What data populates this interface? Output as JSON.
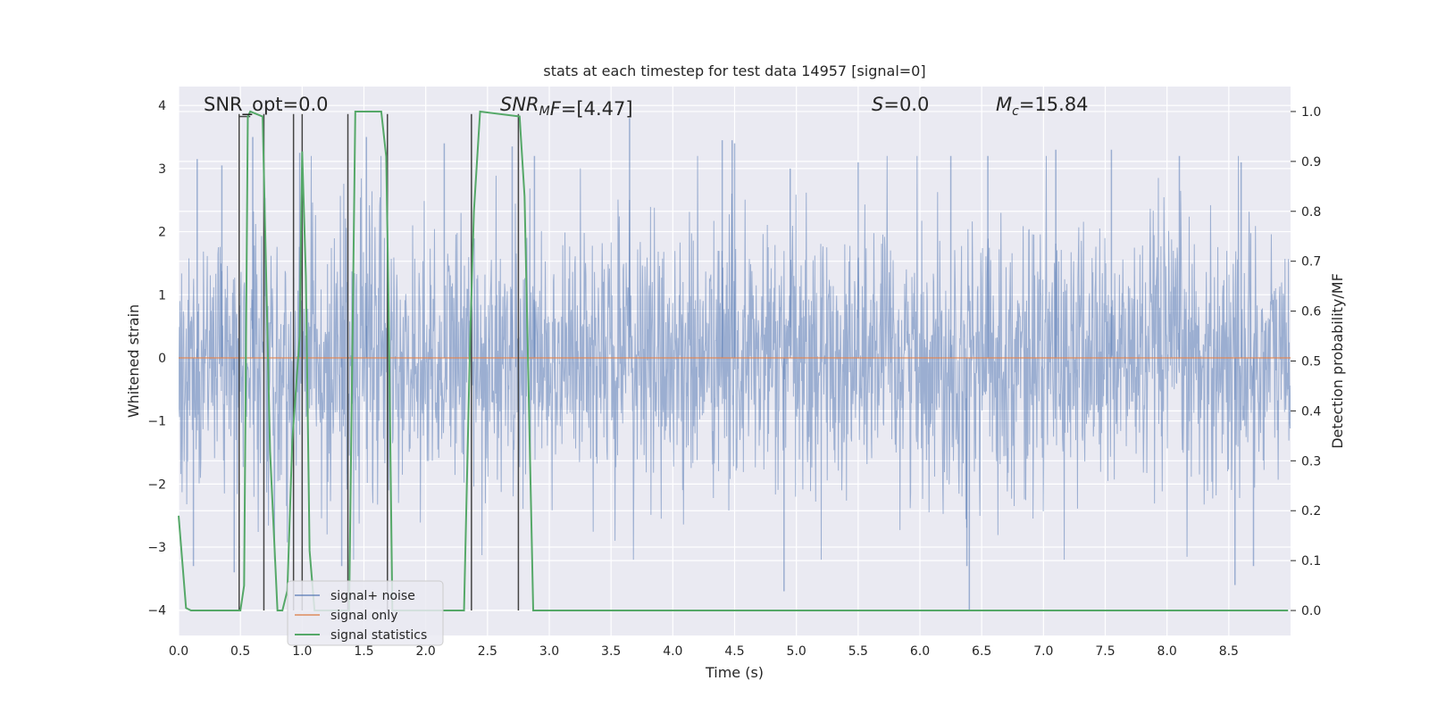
{
  "chart_data": {
    "type": "line",
    "title": "stats at each timestep for test data 14957 [signal=0]",
    "xlabel": "Time (s)",
    "ylabel_left": "Whitened strain",
    "ylabel_right": "Detection probability/MF",
    "xlim": [
      0.0,
      9.0
    ],
    "ylim_left": [
      -4.4,
      4.3
    ],
    "ylim_right": [
      -0.05,
      1.05
    ],
    "xticks": [
      "0.0",
      "0.5",
      "1.0",
      "1.5",
      "2.0",
      "2.5",
      "3.0",
      "3.5",
      "4.0",
      "4.5",
      "5.0",
      "5.5",
      "6.0",
      "6.5",
      "7.0",
      "7.5",
      "8.0",
      "8.5"
    ],
    "yticks_left": [
      "4",
      "3",
      "2",
      "1",
      "0",
      "−1",
      "−2",
      "−3",
      "−4"
    ],
    "yticks_right": [
      "1.0",
      "0.9",
      "0.8",
      "0.7",
      "0.6",
      "0.5",
      "0.4",
      "0.3",
      "0.2",
      "0.1",
      "0.0"
    ],
    "grid": true,
    "legend_location": "lower-left",
    "annotations": {
      "snr_opt": "SNR_opt=0.0",
      "snr_mf_label": "SNR",
      "snr_mf_sub": "M",
      "snr_mf_rest": "F=[4.47]",
      "s_label": "S",
      "s_rest": "=0.0",
      "mc_label": "M",
      "mc_sub": "c",
      "mc_rest": "=15.84"
    },
    "series": [
      {
        "name": "signal+ noise",
        "color": "#4c72b0",
        "axis": "left",
        "description_range": [
          -4.0,
          3.9
        ],
        "spikes": [
          [
            0.15,
            3.15
          ],
          [
            0.35,
            3.05
          ],
          [
            0.6,
            3.5
          ],
          [
            0.98,
            3.25
          ],
          [
            1.52,
            3.5
          ],
          [
            2.15,
            3.4
          ],
          [
            2.7,
            3.35
          ],
          [
            2.88,
            3.2
          ],
          [
            3.65,
            3.8
          ],
          [
            4.4,
            3.45
          ],
          [
            4.48,
            3.45
          ],
          [
            4.5,
            3.4
          ],
          [
            4.95,
            3.0
          ],
          [
            5.5,
            3.1
          ],
          [
            6.25,
            3.2
          ],
          [
            6.55,
            3.2
          ],
          [
            7.1,
            3.3
          ],
          [
            7.55,
            3.3
          ],
          [
            8.1,
            3.2
          ],
          [
            8.6,
            3.1
          ],
          [
            0.12,
            -3.3
          ],
          [
            0.45,
            -3.4
          ],
          [
            1.32,
            -3.3
          ],
          [
            4.9,
            -3.7
          ],
          [
            6.4,
            -4.0
          ],
          [
            6.38,
            -3.3
          ],
          [
            8.55,
            -3.6
          ],
          [
            8.7,
            -3.3
          ]
        ]
      },
      {
        "name": "signal only",
        "color": "#dd8452",
        "axis": "left",
        "value": 0.0
      },
      {
        "name": "signal statistics",
        "color": "#55a868",
        "axis": "right",
        "x": [
          0.0,
          0.06,
          0.1,
          0.5,
          0.53,
          0.56,
          0.58,
          0.68,
          0.74,
          0.8,
          0.84,
          0.88,
          0.92,
          0.98,
          1.0,
          1.03,
          1.06,
          1.1,
          1.3,
          1.38,
          1.43,
          1.64,
          1.68,
          1.7,
          1.73,
          2.31,
          2.36,
          2.39,
          2.44,
          2.76,
          2.8,
          2.87,
          2.92,
          3.0,
          8.98
        ],
        "y": [
          0.19,
          0.005,
          0.0,
          0.0,
          0.05,
          0.99,
          1.0,
          0.99,
          0.32,
          0.0,
          0.0,
          0.04,
          0.34,
          0.55,
          0.92,
          0.67,
          0.12,
          0.0,
          0.0,
          0.0,
          1.0,
          1.0,
          0.91,
          0.6,
          0.0,
          0.0,
          0.55,
          0.8,
          1.0,
          0.99,
          0.83,
          0.0,
          0.0,
          0.0,
          0.0
        ]
      }
    ],
    "vertical_markers": [
      0.49,
      0.69,
      0.93,
      1.0,
      1.37,
      1.69,
      2.37,
      2.75
    ],
    "legend": {
      "entries": [
        "signal+ noise",
        "signal only",
        "signal statistics"
      ]
    }
  }
}
